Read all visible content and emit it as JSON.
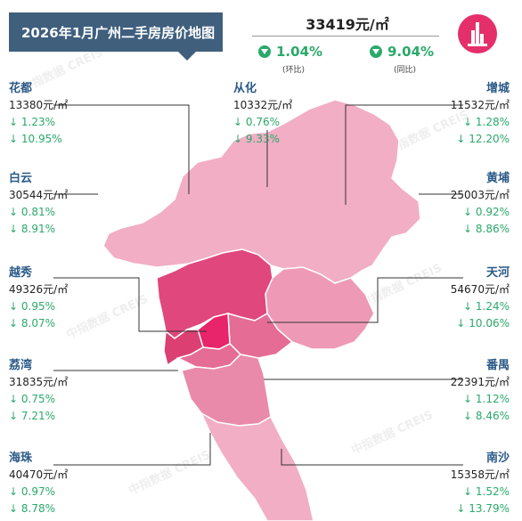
{
  "title": "2026年1月广州二手房房价地图",
  "average": {
    "price": "33419元/㎡",
    "mom": {
      "value": "1.04%",
      "label": "(环比)"
    },
    "yoy": {
      "value": "9.04%",
      "label": "(同比)"
    }
  },
  "watermark": "中指数据 CREIS",
  "districts": [
    {
      "name": "花都",
      "price": "13380元/㎡",
      "mom": "↓ 1.23%",
      "yoy": "↓ 10.95%"
    },
    {
      "name": "从化",
      "price": "10332元/㎡",
      "mom": "↓ 0.76%",
      "yoy": "↓ 9.33%"
    },
    {
      "name": "增城",
      "price": "11532元/㎡",
      "mom": "↓ 1.28%",
      "yoy": "↓ 12.20%"
    },
    {
      "name": "白云",
      "price": "30544元/㎡",
      "mom": "↓ 0.81%",
      "yoy": "↓ 8.91%"
    },
    {
      "name": "黄埔",
      "price": "25003元/㎡",
      "mom": "↓ 0.92%",
      "yoy": "↓ 8.86%"
    },
    {
      "name": "越秀",
      "price": "49326元/㎡",
      "mom": "↓ 0.95%",
      "yoy": "↓ 8.07%"
    },
    {
      "name": "天河",
      "price": "54670元/㎡",
      "mom": "↓ 1.24%",
      "yoy": "↓ 10.06%"
    },
    {
      "name": "荔湾",
      "price": "31835元/㎡",
      "mom": "↓ 0.75%",
      "yoy": "↓ 7.21%"
    },
    {
      "name": "番禺",
      "price": "22391元/㎡",
      "mom": "↓ 1.12%",
      "yoy": "↓ 8.46%"
    },
    {
      "name": "海珠",
      "price": "40470元/㎡",
      "mom": "↓ 0.97%",
      "yoy": "↓ 8.78%"
    },
    {
      "name": "南沙",
      "price": "15358元/㎡",
      "mom": "↓ 1.52%",
      "yoy": "↓ 13.79%"
    }
  ],
  "colors": {
    "title_bg": "#3f5f7d",
    "district_name": "#2b5a87",
    "down_green": "#2aa96a",
    "map_light": "#f1aec4",
    "map_mid": "#e98aab",
    "map_core": "#dc3f72",
    "map_hot": "#e8246a"
  }
}
